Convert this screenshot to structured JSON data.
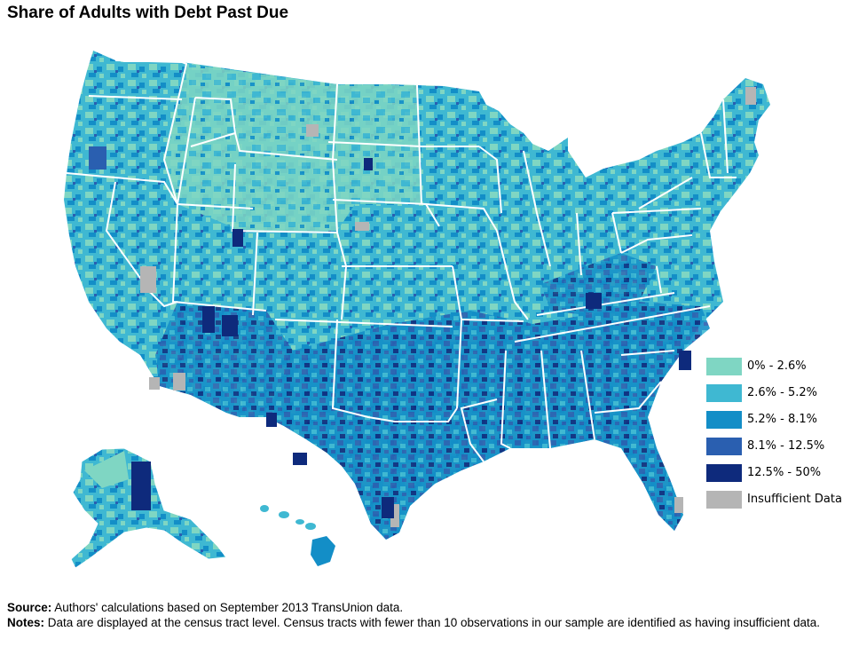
{
  "title": "Share of Adults with Debt Past Due",
  "legend": [
    {
      "label": "0% - 2.6%",
      "color": "#7fd6c3"
    },
    {
      "label": "2.6% - 5.2%",
      "color": "#3fb8d2"
    },
    {
      "label": "5.2% - 8.1%",
      "color": "#138ec7"
    },
    {
      "label": "8.1% - 12.5%",
      "color": "#2a5fb0"
    },
    {
      "label": "12.5% - 50%",
      "color": "#0e2a7c"
    },
    {
      "label": "Insufficient Data",
      "color": "#b5b5b5"
    }
  ],
  "source": {
    "label": "Source:",
    "text": " Authors' calculations based on September 2013 TransUnion data."
  },
  "notes": {
    "label": "Notes:",
    "text": " Data are displayed at the census tract level. Census tracts with fewer than 10 observations in our sample are identified as having insufficient data."
  }
}
